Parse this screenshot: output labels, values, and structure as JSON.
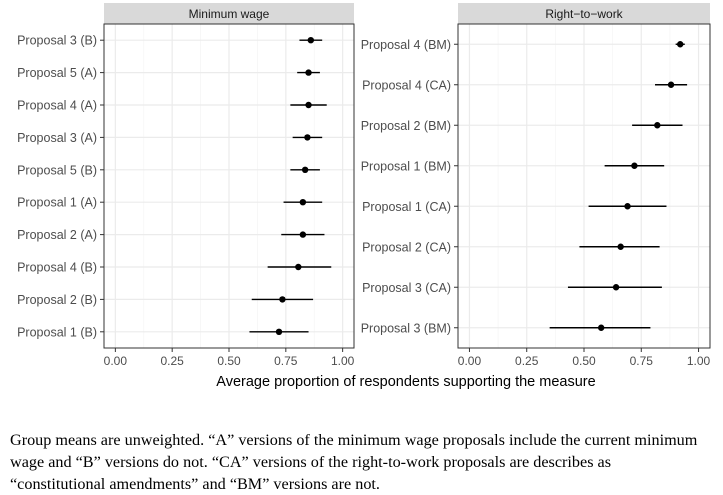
{
  "chart_data": [
    {
      "type": "dot-errorbar",
      "title": "Minimum wage",
      "xlim": [
        -0.05,
        1.05
      ],
      "xticks": [
        "0.00",
        "0.25",
        "0.50",
        "0.75",
        "1.00"
      ],
      "grid": true,
      "points": [
        {
          "label": "Proposal 3 (B)",
          "mean": 0.86,
          "lo": 0.81,
          "hi": 0.91
        },
        {
          "label": "Proposal 5 (A)",
          "mean": 0.85,
          "lo": 0.8,
          "hi": 0.9
        },
        {
          "label": "Proposal 4 (A)",
          "mean": 0.85,
          "lo": 0.77,
          "hi": 0.93
        },
        {
          "label": "Proposal 3 (A)",
          "mean": 0.845,
          "lo": 0.78,
          "hi": 0.91
        },
        {
          "label": "Proposal 5 (B)",
          "mean": 0.835,
          "lo": 0.77,
          "hi": 0.9
        },
        {
          "label": "Proposal 1 (A)",
          "mean": 0.825,
          "lo": 0.74,
          "hi": 0.91
        },
        {
          "label": "Proposal 2 (A)",
          "mean": 0.825,
          "lo": 0.73,
          "hi": 0.92
        },
        {
          "label": "Proposal 4 (B)",
          "mean": 0.805,
          "lo": 0.67,
          "hi": 0.95
        },
        {
          "label": "Proposal 2 (B)",
          "mean": 0.735,
          "lo": 0.6,
          "hi": 0.87
        },
        {
          "label": "Proposal 1 (B)",
          "mean": 0.72,
          "lo": 0.59,
          "hi": 0.85
        }
      ]
    },
    {
      "type": "dot-errorbar",
      "title": "Right−to−work",
      "xlim": [
        -0.05,
        1.05
      ],
      "xticks": [
        "0.00",
        "0.25",
        "0.50",
        "0.75",
        "1.00"
      ],
      "grid": true,
      "points": [
        {
          "label": "Proposal 4 (BM)",
          "mean": 0.92,
          "lo": 0.9,
          "hi": 0.94
        },
        {
          "label": "Proposal 4 (CA)",
          "mean": 0.88,
          "lo": 0.81,
          "hi": 0.95
        },
        {
          "label": "Proposal 2 (BM)",
          "mean": 0.82,
          "lo": 0.71,
          "hi": 0.93
        },
        {
          "label": "Proposal 1 (BM)",
          "mean": 0.72,
          "lo": 0.59,
          "hi": 0.85
        },
        {
          "label": "Proposal 1 (CA)",
          "mean": 0.69,
          "lo": 0.52,
          "hi": 0.86
        },
        {
          "label": "Proposal 2 (CA)",
          "mean": 0.66,
          "lo": 0.48,
          "hi": 0.83
        },
        {
          "label": "Proposal 3 (CA)",
          "mean": 0.64,
          "lo": 0.43,
          "hi": 0.84
        },
        {
          "label": "Proposal 3 (BM)",
          "mean": 0.575,
          "lo": 0.35,
          "hi": 0.79
        }
      ]
    }
  ],
  "xlabel": "Average proportion of respondents supporting the measure",
  "caption": "Group means are unweighted. “A” versions of the minimum wage proposals include the current minimum wage and “B” versions do not. “CA” versions of the right-to-work proposals are describes as “constitutional amendments” and “BM” versions are not.",
  "colors": {
    "strip": "#d9d9d9",
    "panel_border": "#333333",
    "grid_major": "#ebebeb",
    "grid_minor": "#f5f5f5",
    "point": "#000000",
    "tick_label": "#4d4d4d"
  }
}
